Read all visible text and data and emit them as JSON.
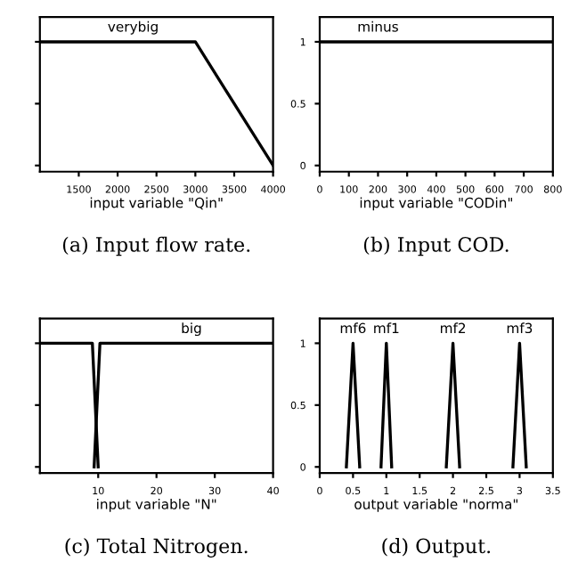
{
  "chart_data": [
    {
      "type": "line",
      "xlabel": "input variable \"Qin\"",
      "xlim": [
        1000,
        4000
      ],
      "xticks": [
        1500,
        2000,
        2500,
        3000,
        3500,
        4000
      ],
      "ylim": [
        -0.05,
        1.2
      ],
      "yticks": [
        0,
        0.5,
        1
      ],
      "tick_labels": "x",
      "annotations": [
        {
          "text": "verybig",
          "x": 2200,
          "y": 1
        },
        "(a) Input flow rate."
      ],
      "series": [
        {
          "color": "#000000",
          "x": [
            1000,
            3000,
            4000
          ],
          "values": [
            1,
            1,
            0
          ]
        }
      ]
    },
    {
      "type": "line",
      "xlabel": "input variable \"CODin\"",
      "xlim": [
        0,
        800
      ],
      "xticks": [
        0,
        100,
        200,
        300,
        400,
        500,
        600,
        700,
        800
      ],
      "ylim": [
        -0.05,
        1.2
      ],
      "yticks": [
        0,
        0.5,
        1
      ],
      "annotations": [
        {
          "text": "minus",
          "x": 200,
          "y": 1
        },
        "(b) Input COD."
      ],
      "series": [
        {
          "color": "#000000",
          "x": [
            0,
            800
          ],
          "values": [
            1,
            1
          ]
        }
      ]
    },
    {
      "type": "line",
      "xlabel": "input variable \"N\"",
      "xlim": [
        0,
        40
      ],
      "xticks": [
        10,
        20,
        30,
        40
      ],
      "ylim": [
        -0.05,
        1.2
      ],
      "yticks": [
        0,
        0.5,
        1
      ],
      "tick_labels": "x",
      "annotations": [
        {
          "text": "big",
          "x": 26,
          "y": 1
        },
        "(c) Total Nitrogen."
      ],
      "series": [
        {
          "color": "#000000",
          "x": [
            0,
            9,
            10
          ],
          "values": [
            1,
            1,
            0
          ]
        },
        {
          "color": "#000000",
          "x": [
            9.3,
            10.3,
            40
          ],
          "values": [
            0,
            1,
            1
          ]
        }
      ]
    },
    {
      "type": "line",
      "xlabel": "output variable \"norma\"",
      "xlim": [
        0,
        3.5
      ],
      "xticks": [
        0,
        0.5,
        1,
        1.5,
        2,
        2.5,
        3,
        3.5
      ],
      "ylim": [
        -0.05,
        1.2
      ],
      "yticks": [
        0,
        0.5,
        1
      ],
      "annotations": [
        {
          "text": "mf6",
          "x": 0.5,
          "y": 1
        },
        {
          "text": "mf1",
          "x": 1,
          "y": 1
        },
        {
          "text": "mf2",
          "x": 2,
          "y": 1
        },
        {
          "text": "mf3",
          "x": 3,
          "y": 1
        },
        "(d) Output."
      ],
      "series": [
        {
          "color": "#000000",
          "x": [
            0.4,
            0.5,
            0.6
          ],
          "values": [
            0,
            1,
            0
          ]
        },
        {
          "color": "#000000",
          "x": [
            0.92,
            1,
            1.08
          ],
          "values": [
            0,
            1,
            0
          ]
        },
        {
          "color": "#000000",
          "x": [
            1.9,
            2,
            2.1
          ],
          "values": [
            0,
            1,
            0
          ]
        },
        {
          "color": "#000000",
          "x": [
            2.9,
            3,
            3.1
          ],
          "values": [
            0,
            1,
            0
          ]
        }
      ]
    }
  ]
}
